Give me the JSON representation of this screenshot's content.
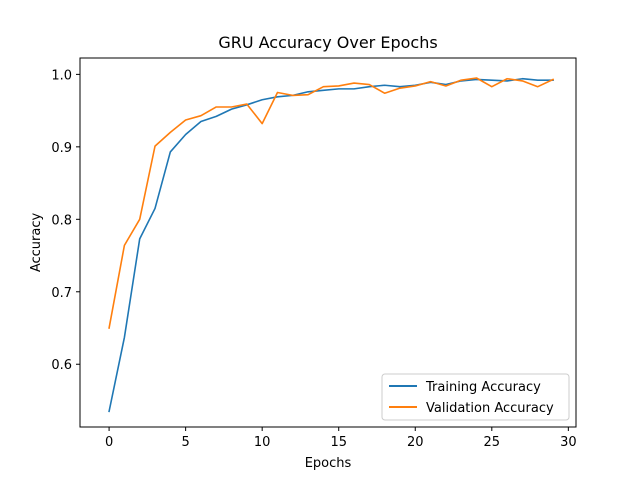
{
  "chart_data": {
    "type": "line",
    "title": "GRU Accuracy Over Epochs",
    "xlabel": "Epochs",
    "ylabel": "Accuracy",
    "xlim": [
      -1.9,
      30.5
    ],
    "ylim": [
      0.5134,
      1.0226
    ],
    "x_ticks": [
      0,
      5,
      10,
      15,
      20,
      25,
      30
    ],
    "y_ticks": [
      0.6,
      0.7,
      0.8,
      0.9,
      1.0
    ],
    "y_tick_labels": [
      "0.6",
      "0.7",
      "0.8",
      "0.9",
      "1.0"
    ],
    "grid": false,
    "legend_position": "lower-right",
    "x": [
      0,
      1,
      2,
      3,
      4,
      5,
      6,
      7,
      8,
      9,
      10,
      11,
      12,
      13,
      14,
      15,
      16,
      17,
      18,
      19,
      20,
      21,
      22,
      23,
      24,
      25,
      26,
      27,
      28,
      29
    ],
    "series": [
      {
        "name": "Training Accuracy",
        "color": "#1f77b4",
        "values": [
          0.535,
          0.637,
          0.773,
          0.815,
          0.893,
          0.917,
          0.935,
          0.942,
          0.952,
          0.958,
          0.965,
          0.969,
          0.971,
          0.976,
          0.978,
          0.98,
          0.98,
          0.983,
          0.985,
          0.983,
          0.985,
          0.989,
          0.986,
          0.991,
          0.993,
          0.992,
          0.991,
          0.994,
          0.992,
          0.992
        ]
      },
      {
        "name": "Validation Accuracy",
        "color": "#ff7f0e",
        "values": [
          0.65,
          0.764,
          0.8,
          0.901,
          0.92,
          0.937,
          0.943,
          0.955,
          0.955,
          0.959,
          0.932,
          0.975,
          0.971,
          0.972,
          0.983,
          0.984,
          0.988,
          0.986,
          0.974,
          0.981,
          0.984,
          0.99,
          0.984,
          0.992,
          0.995,
          0.983,
          0.994,
          0.991,
          0.983,
          0.993
        ]
      }
    ]
  }
}
